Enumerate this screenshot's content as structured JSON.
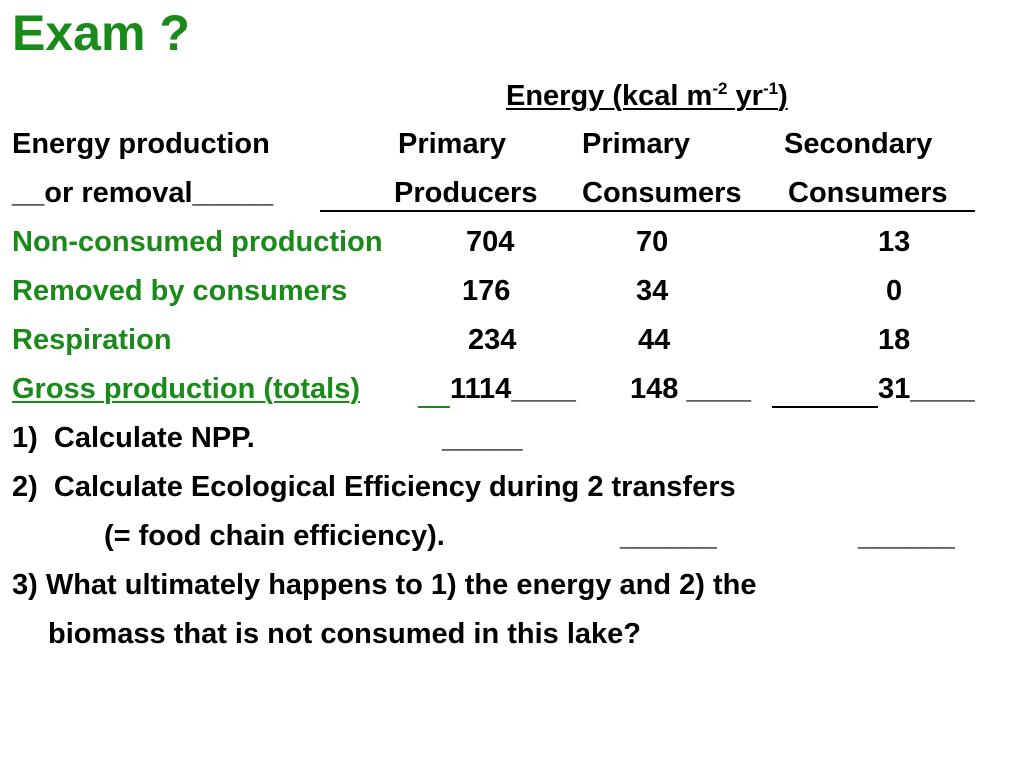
{
  "colors": {
    "green": "#1a8a1a",
    "text": "#000000"
  },
  "title": "Exam ?",
  "energy_header": {
    "prefix": "Energy (kcal m",
    "sup1": "-2",
    "mid": " yr",
    "sup2": "-1",
    "suffix": ")"
  },
  "header_row1": {
    "label": "Energy production",
    "c1": "Primary",
    "c2": "Primary",
    "c3": "Secondary"
  },
  "header_row2": {
    "label": "__or removal_____",
    "c1": "Producers",
    "c2": "Consumers",
    "c3": "Consumers"
  },
  "rows": [
    {
      "label": "Non-consumed production",
      "v1": "704",
      "v2": "70",
      "v3": "13"
    },
    {
      "label": "Removed by consumers",
      "v1": "176",
      "v2": "34",
      "v3": "0"
    },
    {
      "label": "Respiration",
      "v1": "234",
      "v2": "44",
      "v3": "18"
    },
    {
      "label": "Gross production (totals)",
      "v1": "1114____",
      "v2": "148 ____",
      "v3": "31____"
    }
  ],
  "q1": {
    "text": "1)  Calculate NPP.",
    "blank": "_____"
  },
  "q2": {
    "text": "2)  Calculate Ecological Efficiency during 2 transfers",
    "sub": "(= food chain efficiency).",
    "blank1": "______",
    "blank2": "______"
  },
  "q3": {
    "line1": "3) What ultimately happens to 1) the energy and 2) the",
    "line2": "biomass that is not consumed in this lake?"
  }
}
